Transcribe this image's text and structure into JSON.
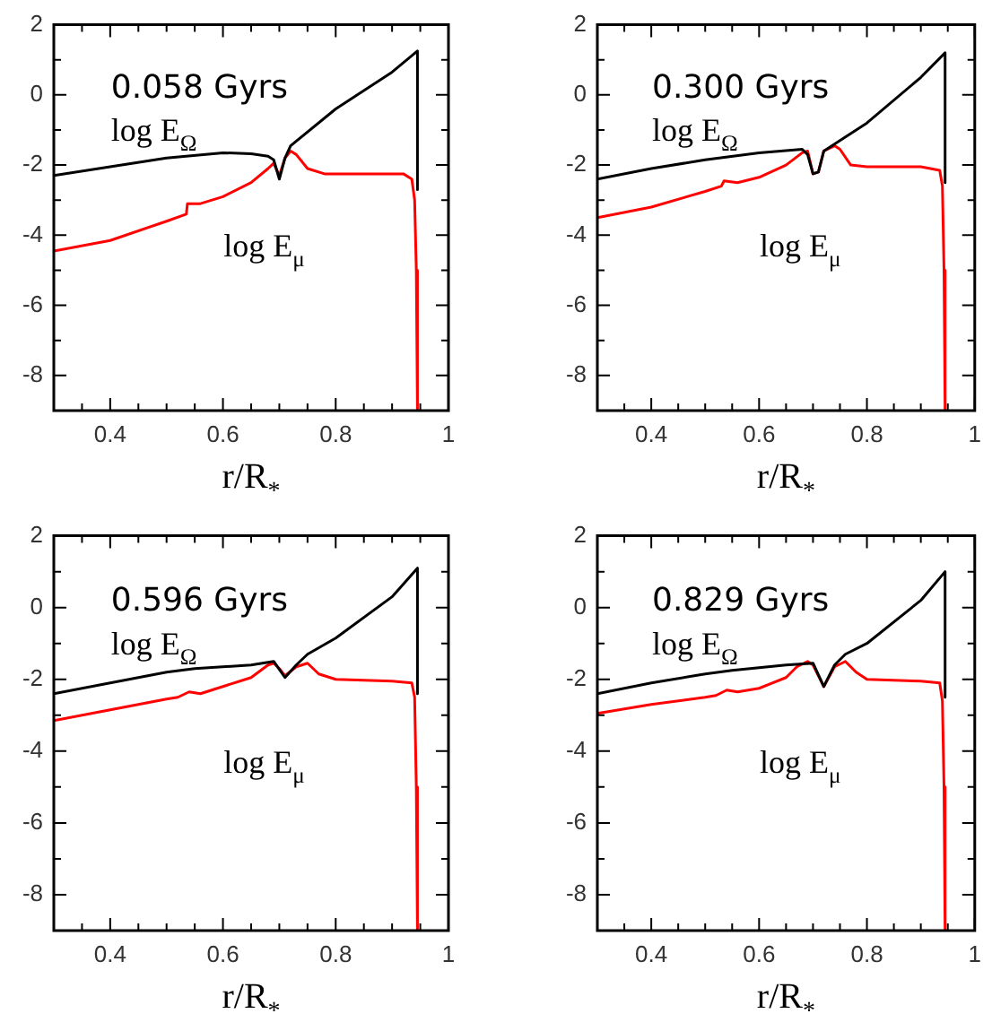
{
  "chart_data": [
    {
      "type": "line",
      "title": "0.058 Gyrs",
      "xlabel": "r/R$_{*}$",
      "marker": "none",
      "xlim": [
        0.3,
        1.0
      ],
      "ylim": [
        -9,
        2
      ],
      "xticks": [
        {
          "value": 0.35,
          "label": null
        },
        0.4,
        {
          "value": 0.45,
          "label": null
        },
        {
          "value": 0.5,
          "label": null
        },
        {
          "value": 0.55,
          "label": null
        },
        0.6,
        {
          "value": 0.65,
          "label": null
        },
        {
          "value": 0.7,
          "label": null
        },
        {
          "value": 0.75,
          "label": null
        },
        0.8,
        {
          "value": 0.85,
          "label": null
        },
        {
          "value": 0.9,
          "label": null
        },
        {
          "value": 0.95,
          "label": null
        },
        1
      ],
      "yticks": [
        -8,
        {
          "value": -7,
          "label": null
        },
        -6,
        {
          "value": -5,
          "label": null
        },
        -4,
        {
          "value": -3,
          "label": null
        },
        -2,
        {
          "value": -1,
          "label": null
        },
        0,
        {
          "value": 1,
          "label": null
        },
        2
      ],
      "series": [
        {
          "name": "log E$_{Ω}$",
          "color": "#000000",
          "x": [
            0.3,
            0.4,
            0.5,
            0.6,
            0.65,
            0.68,
            0.69,
            0.7,
            0.71,
            0.72,
            0.8,
            0.9,
            0.945,
            0.945
          ],
          "values": [
            -2.3,
            -2.05,
            -1.8,
            -1.65,
            -1.68,
            -1.75,
            -1.85,
            -2.4,
            -1.8,
            -1.45,
            -0.4,
            0.65,
            1.25,
            -2.7
          ]
        },
        {
          "name": "log E$_{μ}$",
          "color": "#ff0000",
          "x": [
            0.3,
            0.4,
            0.5,
            0.535,
            0.537,
            0.56,
            0.6,
            0.65,
            0.68,
            0.69,
            0.7,
            0.71,
            0.72,
            0.73,
            0.75,
            0.78,
            0.85,
            0.92,
            0.935,
            0.94,
            0.943,
            0.945
          ],
          "values": [
            -4.45,
            -4.15,
            -3.6,
            -3.4,
            -3.1,
            -3.1,
            -2.9,
            -2.5,
            -2.1,
            -1.95,
            -2.3,
            -1.8,
            -1.6,
            -1.7,
            -2.1,
            -2.25,
            -2.25,
            -2.25,
            -2.4,
            -3,
            -5,
            -9
          ]
        }
      ]
    },
    {
      "type": "line",
      "title": "0.300 Gyrs",
      "xlabel": "r/R$_{*}$",
      "marker": "none",
      "xlim": [
        0.3,
        1.0
      ],
      "ylim": [
        -9,
        2
      ],
      "xticks": [
        {
          "value": 0.35,
          "label": null
        },
        0.4,
        {
          "value": 0.45,
          "label": null
        },
        {
          "value": 0.5,
          "label": null
        },
        {
          "value": 0.55,
          "label": null
        },
        0.6,
        {
          "value": 0.65,
          "label": null
        },
        {
          "value": 0.7,
          "label": null
        },
        {
          "value": 0.75,
          "label": null
        },
        0.8,
        {
          "value": 0.85,
          "label": null
        },
        {
          "value": 0.9,
          "label": null
        },
        {
          "value": 0.95,
          "label": null
        },
        1
      ],
      "yticks": [
        -8,
        {
          "value": -7,
          "label": null
        },
        -6,
        {
          "value": -5,
          "label": null
        },
        -4,
        {
          "value": -3,
          "label": null
        },
        -2,
        {
          "value": -1,
          "label": null
        },
        0,
        {
          "value": 1,
          "label": null
        },
        2
      ],
      "series": [
        {
          "name": "log E$_{Ω}$",
          "color": "#000000",
          "x": [
            0.3,
            0.4,
            0.5,
            0.6,
            0.68,
            0.69,
            0.7,
            0.71,
            0.72,
            0.75,
            0.8,
            0.9,
            0.945,
            0.945
          ],
          "values": [
            -2.4,
            -2.1,
            -1.85,
            -1.65,
            -1.55,
            -1.7,
            -2.25,
            -2.2,
            -1.6,
            -1.3,
            -0.8,
            0.5,
            1.2,
            -2.5
          ]
        },
        {
          "name": "log E$_{μ}$",
          "color": "#ff0000",
          "x": [
            0.3,
            0.4,
            0.5,
            0.53,
            0.535,
            0.56,
            0.6,
            0.65,
            0.68,
            0.69,
            0.7,
            0.71,
            0.72,
            0.74,
            0.75,
            0.77,
            0.8,
            0.9,
            0.935,
            0.94,
            0.943,
            0.945
          ],
          "values": [
            -3.5,
            -3.2,
            -2.75,
            -2.6,
            -2.45,
            -2.5,
            -2.35,
            -2.0,
            -1.65,
            -1.6,
            -2.25,
            -2.2,
            -1.6,
            -1.45,
            -1.55,
            -2.0,
            -2.05,
            -2.05,
            -2.15,
            -2.6,
            -5,
            -9
          ]
        }
      ]
    },
    {
      "type": "line",
      "title": "0.596 Gyrs",
      "xlabel": "r/R$_{*}$",
      "marker": "none",
      "xlim": [
        0.3,
        1.0
      ],
      "ylim": [
        -9,
        2
      ],
      "xticks": [
        {
          "value": 0.35,
          "label": null
        },
        0.4,
        {
          "value": 0.45,
          "label": null
        },
        {
          "value": 0.5,
          "label": null
        },
        {
          "value": 0.55,
          "label": null
        },
        0.6,
        {
          "value": 0.65,
          "label": null
        },
        {
          "value": 0.7,
          "label": null
        },
        {
          "value": 0.75,
          "label": null
        },
        0.8,
        {
          "value": 0.85,
          "label": null
        },
        {
          "value": 0.9,
          "label": null
        },
        {
          "value": 0.95,
          "label": null
        },
        1
      ],
      "yticks": [
        -8,
        {
          "value": -7,
          "label": null
        },
        -6,
        {
          "value": -5,
          "label": null
        },
        -4,
        {
          "value": -3,
          "label": null
        },
        -2,
        {
          "value": -1,
          "label": null
        },
        0,
        {
          "value": 1,
          "label": null
        },
        2
      ],
      "series": [
        {
          "name": "log E$_{Ω}$",
          "color": "#000000",
          "x": [
            0.3,
            0.4,
            0.5,
            0.55,
            0.65,
            0.69,
            0.71,
            0.73,
            0.75,
            0.8,
            0.9,
            0.945,
            0.945
          ],
          "values": [
            -2.4,
            -2.1,
            -1.8,
            -1.7,
            -1.6,
            -1.5,
            -1.95,
            -1.6,
            -1.3,
            -0.85,
            0.3,
            1.1,
            -2.4
          ]
        },
        {
          "name": "log E$_{μ}$",
          "color": "#ff0000",
          "x": [
            0.3,
            0.4,
            0.5,
            0.52,
            0.54,
            0.56,
            0.6,
            0.65,
            0.68,
            0.69,
            0.7,
            0.71,
            0.73,
            0.75,
            0.77,
            0.8,
            0.9,
            0.935,
            0.94,
            0.943,
            0.945
          ],
          "values": [
            -3.15,
            -2.85,
            -2.55,
            -2.5,
            -2.35,
            -2.4,
            -2.2,
            -1.95,
            -1.6,
            -1.55,
            -1.7,
            -1.9,
            -1.65,
            -1.55,
            -1.85,
            -2.0,
            -2.05,
            -2.1,
            -2.5,
            -5,
            -9
          ]
        }
      ]
    },
    {
      "type": "line",
      "title": "0.829 Gyrs",
      "xlabel": "r/R$_{*}$",
      "marker": "none",
      "xlim": [
        0.3,
        1.0
      ],
      "ylim": [
        -9,
        2
      ],
      "xticks": [
        {
          "value": 0.35,
          "label": null
        },
        0.4,
        {
          "value": 0.45,
          "label": null
        },
        {
          "value": 0.5,
          "label": null
        },
        {
          "value": 0.55,
          "label": null
        },
        0.6,
        {
          "value": 0.65,
          "label": null
        },
        {
          "value": 0.7,
          "label": null
        },
        {
          "value": 0.75,
          "label": null
        },
        0.8,
        {
          "value": 0.85,
          "label": null
        },
        {
          "value": 0.9,
          "label": null
        },
        {
          "value": 0.95,
          "label": null
        },
        1
      ],
      "yticks": [
        -8,
        {
          "value": -7,
          "label": null
        },
        -6,
        {
          "value": -5,
          "label": null
        },
        -4,
        {
          "value": -3,
          "label": null
        },
        -2,
        {
          "value": -1,
          "label": null
        },
        0,
        {
          "value": 1,
          "label": null
        },
        2
      ],
      "series": [
        {
          "name": "log E$_{Ω}$",
          "color": "#000000",
          "x": [
            0.3,
            0.4,
            0.5,
            0.55,
            0.65,
            0.7,
            0.72,
            0.74,
            0.76,
            0.8,
            0.9,
            0.945,
            0.945
          ],
          "values": [
            -2.4,
            -2.1,
            -1.85,
            -1.75,
            -1.6,
            -1.55,
            -2.2,
            -1.6,
            -1.3,
            -1.0,
            0.2,
            1.0,
            -2.5
          ]
        },
        {
          "name": "log E$_{μ}$",
          "color": "#ff0000",
          "x": [
            0.3,
            0.4,
            0.5,
            0.52,
            0.54,
            0.56,
            0.6,
            0.65,
            0.67,
            0.69,
            0.7,
            0.72,
            0.74,
            0.76,
            0.78,
            0.8,
            0.9,
            0.935,
            0.94,
            0.943,
            0.945
          ],
          "values": [
            -2.95,
            -2.7,
            -2.5,
            -2.45,
            -2.3,
            -2.35,
            -2.25,
            -1.95,
            -1.65,
            -1.5,
            -1.6,
            -2.2,
            -1.65,
            -1.5,
            -1.8,
            -2.0,
            -2.05,
            -2.1,
            -2.6,
            -5,
            -9
          ]
        }
      ]
    }
  ]
}
